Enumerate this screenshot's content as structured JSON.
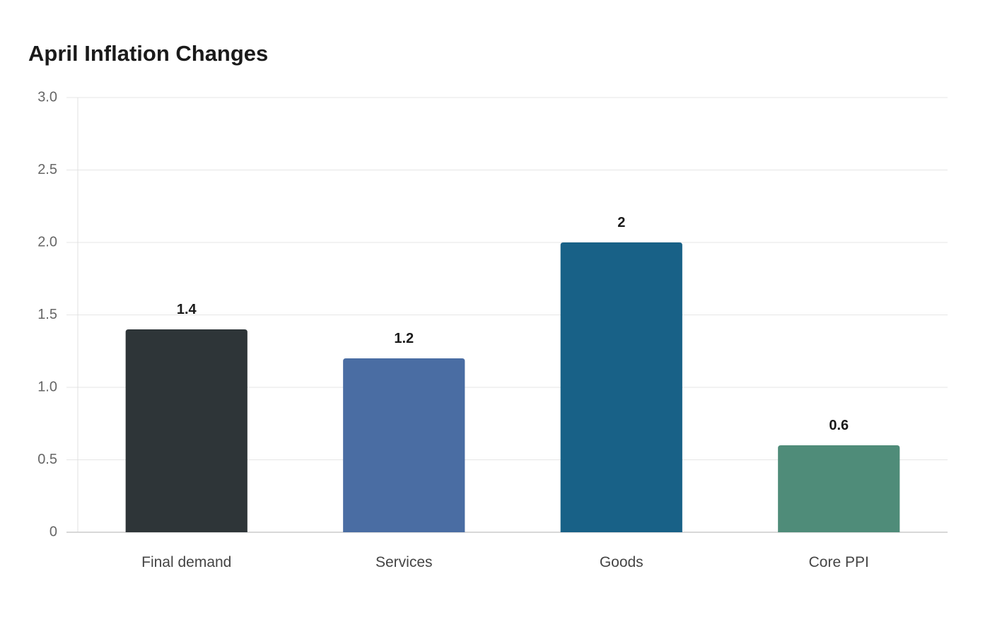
{
  "chart_data": {
    "type": "bar",
    "title": "April Inflation Changes",
    "xlabel": "",
    "ylabel": "",
    "categories": [
      "Final demand",
      "Services",
      "Goods",
      "Core PPI"
    ],
    "values": [
      1.4,
      1.2,
      2,
      0.6
    ],
    "value_labels": [
      "1.4",
      "1.2",
      "2",
      "0.6"
    ],
    "colors": [
      "#2e3538",
      "#4a6da3",
      "#186187",
      "#4f8c79"
    ],
    "ylim": [
      0,
      3.0
    ],
    "y_ticks": [
      0,
      0.5,
      1.0,
      1.5,
      2.0,
      2.5,
      3.0
    ],
    "y_tick_labels": [
      "0",
      "0.5",
      "1.0",
      "1.5",
      "2.0",
      "2.5",
      "3.0"
    ],
    "grid": true,
    "legend": "none"
  }
}
